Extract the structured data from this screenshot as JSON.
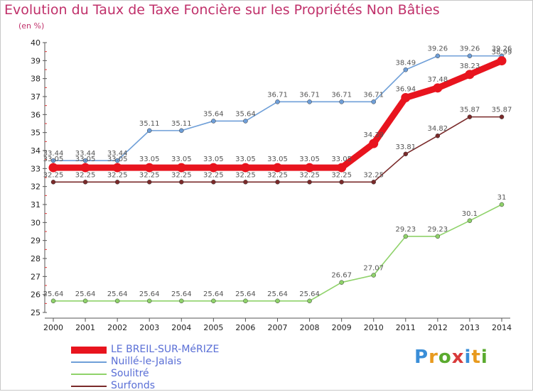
{
  "title": "Evolution du Taux de Taxe Foncière sur les Propriétés Non Bâties",
  "unit_label": "(en %)",
  "logo": {
    "text": "Proxiti",
    "colors": [
      "#3a8ed8",
      "#e89a1e",
      "#5aaa2e",
      "#d83a3a",
      "#3a8ed8",
      "#e89a1e",
      "#5aaa2e"
    ]
  },
  "chart_data": {
    "type": "line",
    "x": [
      "2000",
      "2001",
      "2002",
      "2003",
      "2004",
      "2005",
      "2006",
      "2007",
      "2008",
      "2009",
      "2010",
      "2011",
      "2012",
      "2013",
      "2014"
    ],
    "ylim": [
      25,
      40
    ],
    "yticks": [
      "25",
      "26",
      "27",
      "28",
      "29",
      "30",
      "31",
      "32",
      "33",
      "34",
      "35",
      "36",
      "37",
      "38",
      "39",
      "40"
    ],
    "grid": false,
    "legend_position": "bottom-left",
    "series": [
      {
        "name": "Nuillé-le-Jalais",
        "color": "#6f9fd8",
        "values": [
          33.44,
          33.44,
          33.44,
          35.11,
          35.11,
          35.64,
          35.64,
          36.71,
          36.71,
          36.71,
          36.71,
          38.49,
          39.26,
          39.26,
          39.26
        ],
        "labels": [
          "33.44",
          "33.44",
          "33.44",
          "35.11",
          "35.11",
          "35.64",
          "35.64",
          "36.71",
          "36.71",
          "36.71",
          "36.71",
          "38.49",
          "39.26",
          "39.26",
          "39.26"
        ]
      },
      {
        "name": "Surfonds",
        "color": "#7a2a2a",
        "values": [
          32.25,
          32.25,
          32.25,
          32.25,
          32.25,
          32.25,
          32.25,
          32.25,
          32.25,
          32.25,
          32.25,
          33.81,
          34.82,
          35.87,
          35.87
        ],
        "labels": [
          "32.25",
          "32.25",
          "32.25",
          "32.25",
          "32.25",
          "32.25",
          "32.25",
          "32.25",
          "32.25",
          "32.25",
          "32.25",
          "33.81",
          "34.82",
          "35.87",
          "35.87"
        ]
      },
      {
        "name": "Soulitré",
        "color": "#8fd26a",
        "values": [
          25.64,
          25.64,
          25.64,
          25.64,
          25.64,
          25.64,
          25.64,
          25.64,
          25.64,
          26.67,
          27.07,
          29.23,
          29.23,
          30.1,
          31
        ],
        "labels": [
          "25.64",
          "25.64",
          "25.64",
          "25.64",
          "25.64",
          "25.64",
          "25.64",
          "25.64",
          "25.64",
          "26.67",
          "27.07",
          "29.23",
          "29.23",
          "30.1",
          "31"
        ]
      },
      {
        "name": "LE BREIL-SUR-MéRIZE",
        "color": "#e8141e",
        "values": [
          33.05,
          33.05,
          33.05,
          33.05,
          33.05,
          33.05,
          33.05,
          33.05,
          33.05,
          33.05,
          34.39,
          36.94,
          37.48,
          38.23,
          38.99
        ],
        "labels": [
          "33.05",
          "33.05",
          "33.05",
          "33.05",
          "33.05",
          "33.05",
          "33.05",
          "33.05",
          "33.05",
          "33.05",
          "34.39",
          "36.94",
          "37.48",
          "38.23",
          "38.99"
        ]
      }
    ],
    "legend": [
      {
        "name": "LE BREIL-SUR-MéRIZE",
        "color": "#e8141e",
        "thick": true
      },
      {
        "name": "Nuillé-le-Jalais",
        "color": "#6f9fd8",
        "thick": false
      },
      {
        "name": "Soulitré",
        "color": "#8fd26a",
        "thick": false
      },
      {
        "name": "Surfonds",
        "color": "#7a2a2a",
        "thick": false
      }
    ]
  }
}
